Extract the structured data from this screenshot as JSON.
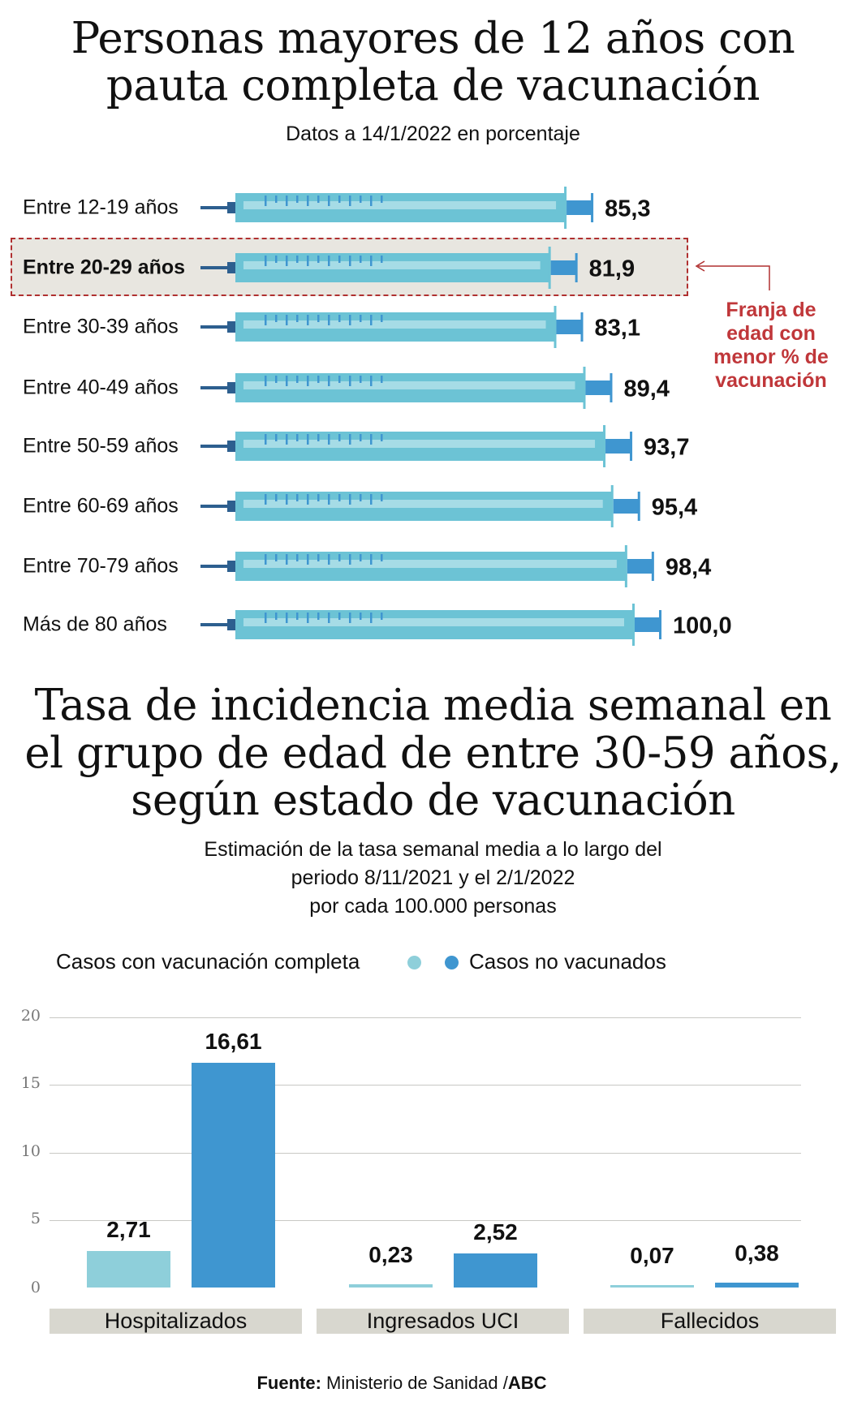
{
  "top": {
    "title_line1": "Personas mayores de 12 años con",
    "title_line2": "pauta completa de vacunación",
    "subtitle": "Datos a 14/1/2022 en porcentaje",
    "annotation": [
      "Franja de",
      "edad con",
      "menor % de",
      "vacunación"
    ],
    "highlight_color": "#b03030",
    "annotation_color": "#c0373a"
  },
  "chart_data": [
    {
      "type": "bar",
      "orientation": "horizontal",
      "style": "syringe",
      "categories": [
        "Entre 12-19 años",
        "Entre 20-29 años",
        "Entre 30-39 años",
        "Entre 40-49 años",
        "Entre 50-59 años",
        "Entre 60-69 años",
        "Entre 70-79 años",
        "Más de 80 años"
      ],
      "values": [
        85.3,
        81.9,
        83.1,
        89.4,
        93.7,
        95.4,
        98.4,
        100.0
      ],
      "value_labels": [
        "85,3",
        "81,9",
        "83,1",
        "89,4",
        "93,7",
        "95,4",
        "98,4",
        "100,0"
      ],
      "highlighted_category": "Entre 20-29 años",
      "colors": {
        "barrel": "#6cc3d5",
        "stripe": "#a6dce6",
        "plunger": "#3f96d0",
        "needle": "#2d5f8f"
      }
    },
    {
      "type": "bar",
      "title_lines": [
        "Tasa de incidencia media semanal en",
        "el grupo de edad de entre 30-59 años,",
        "según estado de vacunación"
      ],
      "subtitle_lines": [
        "Estimación de la tasa semanal media a lo largo del",
        "periodo 8/11/2021 y el 2/1/2022",
        "por cada 100.000 personas"
      ],
      "categories": [
        "Hospitalizados",
        "Ingresados UCI",
        "Fallecidos"
      ],
      "series": [
        {
          "name": "Casos con vacunación completa",
          "values": [
            2.71,
            0.23,
            0.07
          ],
          "labels": [
            "2,71",
            "0,23",
            "0,07"
          ],
          "color": "#8ecfda"
        },
        {
          "name": "Casos no vacunados",
          "values": [
            16.61,
            2.52,
            0.38
          ],
          "labels": [
            "16,61",
            "2,52",
            "0,38"
          ],
          "color": "#3f96d0"
        }
      ],
      "ylim": [
        0,
        20
      ],
      "yticks": [
        "0",
        "5",
        "10",
        "15",
        "20"
      ],
      "grid": true,
      "legend_position": "top"
    }
  ],
  "source": {
    "label": "Fuente:",
    "text": " Ministerio de Sanidad /",
    "brand": "ABC"
  }
}
